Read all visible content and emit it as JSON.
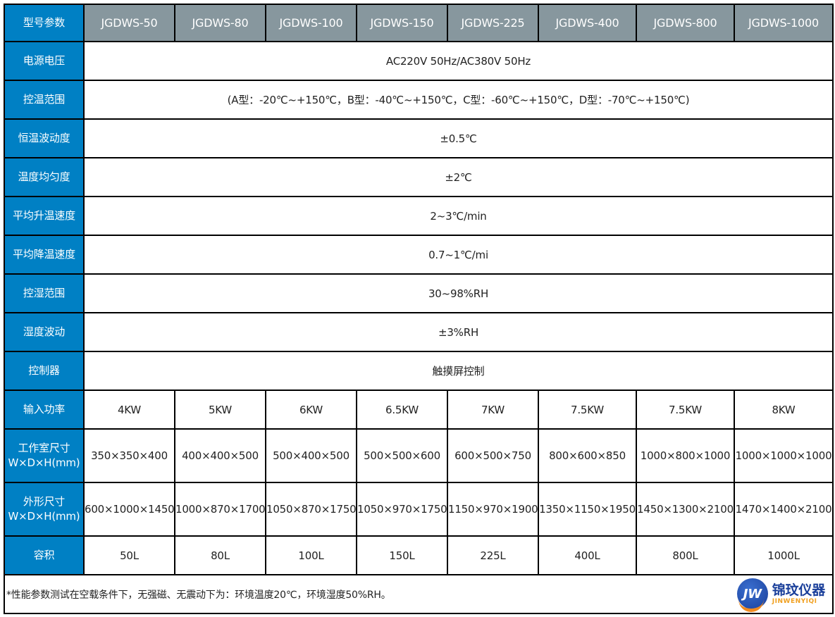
{
  "header": {
    "label": "型号参数",
    "models": [
      "JGDWS-50",
      "JGDWS-80",
      "JGDWS-100",
      "JGDWS-150",
      "JGDWS-225",
      "JGDWS-400",
      "JGDWS-800",
      "JGDWS-1000"
    ]
  },
  "spans": [
    {
      "label": "电源电压",
      "value": "AC220V  50Hz/AC380V  50Hz"
    },
    {
      "label": "控温范围",
      "value": "(A型：-20℃~+150℃，B型：-40℃~+150℃，C型：-60℃~+150℃，D型：-70℃~+150℃)"
    },
    {
      "label": "恒温波动度",
      "value": "±0.5℃"
    },
    {
      "label": "温度均匀度",
      "value": "±2℃"
    },
    {
      "label": "平均升温速度",
      "value": "2~3℃/min"
    },
    {
      "label": "平均降温速度",
      "value": "0.7~1℃/mi"
    },
    {
      "label": "控湿范围",
      "value": "30~98%RH"
    },
    {
      "label": "湿度波动",
      "value": "±3%RH"
    },
    {
      "label": "控制器",
      "value": "触摸屏控制"
    }
  ],
  "rows": [
    {
      "label": "输入功率",
      "label2": "",
      "tall": false,
      "values": [
        "4KW",
        "5KW",
        "6KW",
        "6.5KW",
        "7KW",
        "7.5KW",
        "7.5KW",
        "8KW"
      ]
    },
    {
      "label": "工作室尺寸",
      "label2": "W×D×H(mm)",
      "tall": true,
      "values": [
        "350×350×400",
        "400×400×500",
        "500×400×500",
        "500×500×600",
        "600×500×750",
        "800×600×850",
        "1000×800×1000",
        "1000×1000×1000"
      ]
    },
    {
      "label": "外形尺寸",
      "label2": "W×D×H(mm)",
      "tall": true,
      "values": [
        "600×1000×1450",
        "1000×870×1700",
        "1050×870×1750",
        "1050×970×1750",
        "1150×970×1900",
        "1350×1150×1950",
        "1450×1300×2100",
        "1470×1400×2100"
      ]
    },
    {
      "label": "容积",
      "label2": "",
      "tall": false,
      "values": [
        "50L",
        "80L",
        "100L",
        "150L",
        "225L",
        "400L",
        "800L",
        "1000L"
      ]
    }
  ],
  "footer": {
    "note": "*性能参数测试在空载条件下，无强磁、无震动下为：环境温度20℃，环境湿度50%RH。",
    "logo": {
      "mark": "JW",
      "cn": "锦玟仪器",
      "en": "JINWENYIQI"
    }
  },
  "colors": {
    "label_bg": "#0080c4",
    "header_bg": "#87979e"
  }
}
